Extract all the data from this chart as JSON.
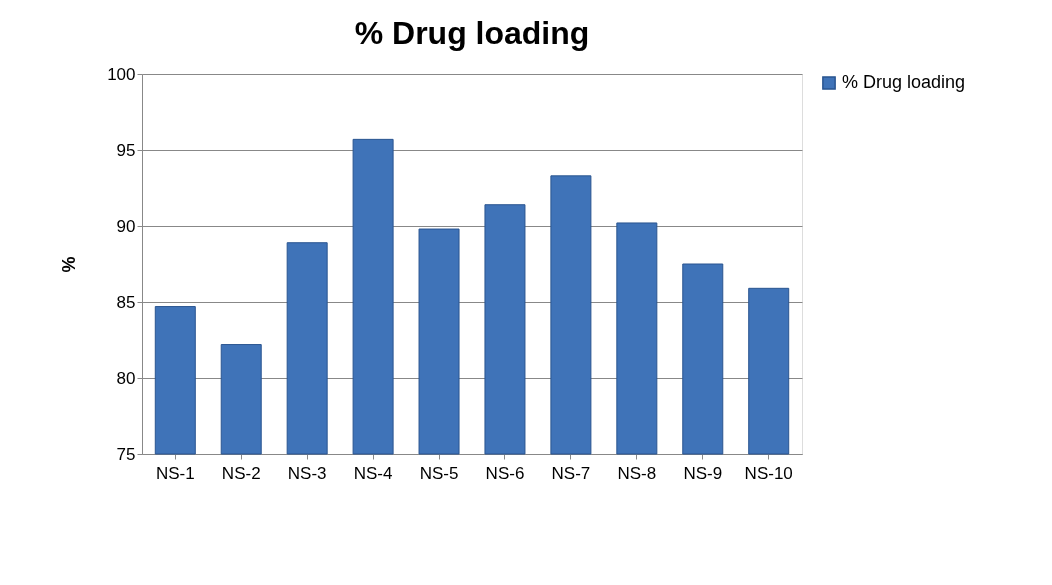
{
  "chart_data": {
    "type": "bar",
    "title": "%  Drug loading",
    "ylabel": "%",
    "categories": [
      "NS-1",
      "NS-2",
      "NS-3",
      "NS-4",
      "NS-5",
      "NS-6",
      "NS-7",
      "NS-8",
      "NS-9",
      "NS-10"
    ],
    "series": [
      {
        "name": "%  Drug loading",
        "color": "#3f73b8",
        "values": [
          84.7,
          82.2,
          88.9,
          95.7,
          89.8,
          91.4,
          93.3,
          90.2,
          87.5,
          85.9
        ]
      }
    ],
    "ylim": [
      75,
      100
    ],
    "yticks": [
      75,
      80,
      85,
      90,
      95,
      100
    ],
    "grid": "y",
    "legend": "right"
  }
}
